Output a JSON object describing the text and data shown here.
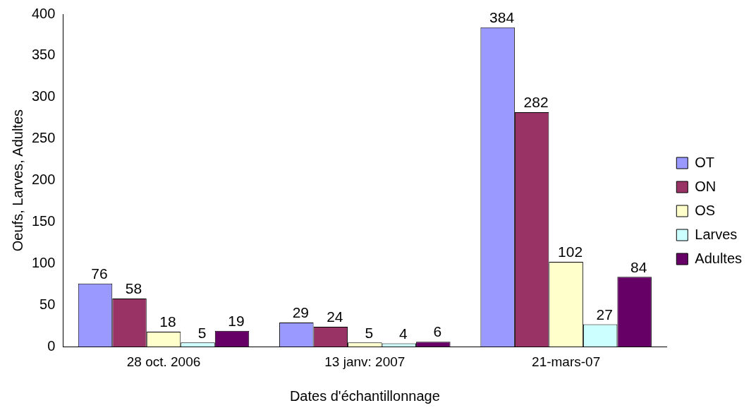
{
  "chart_data": {
    "type": "bar",
    "xlabel": "Dates d'échantillonnage",
    "ylabel": "Oeufs, Larves, Adultes",
    "categories": [
      "28 oct. 2006",
      "13 janv: 2007",
      "21-mars-07"
    ],
    "series": [
      {
        "name": "OT",
        "color": "#9999ff",
        "values": [
          76,
          29,
          384
        ]
      },
      {
        "name": "ON",
        "color": "#993366",
        "values": [
          58,
          24,
          282
        ]
      },
      {
        "name": "OS",
        "color": "#ffffcc",
        "values": [
          18,
          5,
          102
        ]
      },
      {
        "name": "Larves",
        "color": "#ccffff",
        "values": [
          5,
          4,
          27
        ]
      },
      {
        "name": "Adultes",
        "color": "#660066",
        "values": [
          19,
          6,
          84
        ]
      }
    ],
    "ylim": [
      0,
      400
    ],
    "yticks": [
      0,
      50,
      100,
      150,
      200,
      250,
      300,
      350,
      400
    ],
    "grid": false,
    "legend": "right",
    "data_labels": true
  }
}
